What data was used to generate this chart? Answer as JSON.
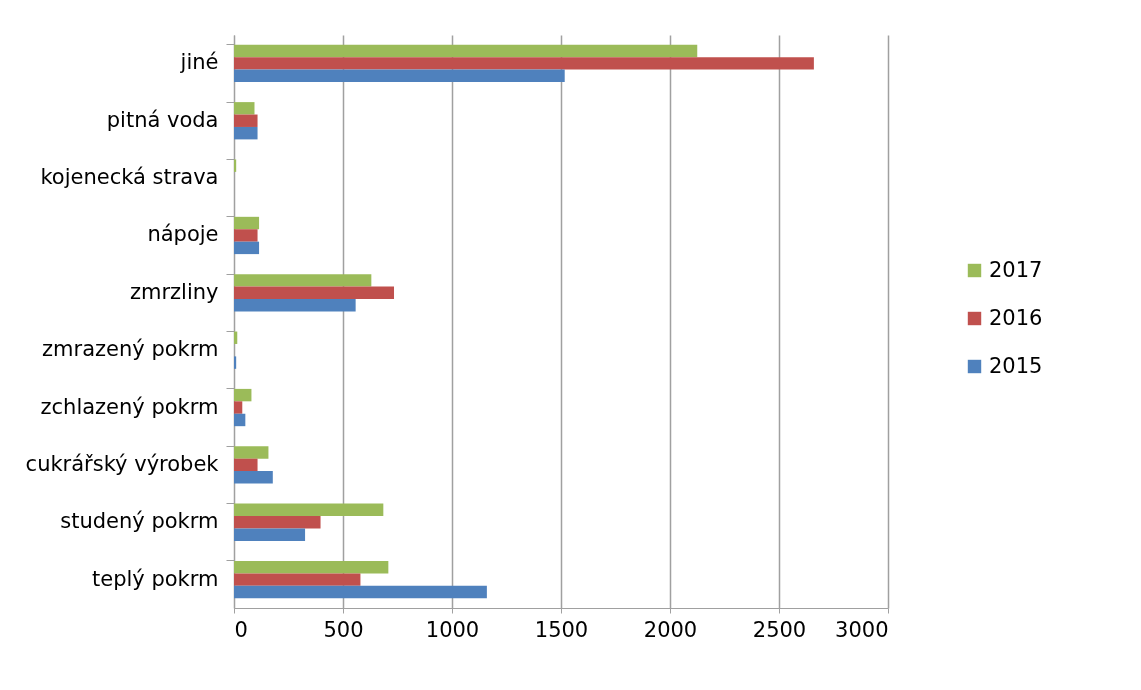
{
  "chart_data": {
    "type": "bar",
    "orientation": "horizontal",
    "categories": [
      "jiné",
      "pitná voda",
      "kojenecká strava",
      "nápoje",
      "zmrzliny",
      "zmrazený pokrm",
      "zchlazený pokrm",
      "cukrářský výrobek",
      "studený pokrm",
      "teplý pokrm"
    ],
    "series": [
      {
        "name": "2017",
        "color": "#9bbb59",
        "values": [
          2125,
          94,
          10,
          115,
          630,
          15,
          80,
          158,
          685,
          708
        ]
      },
      {
        "name": "2016",
        "color": "#c0504d",
        "values": [
          2660,
          108,
          0,
          108,
          734,
          0,
          38,
          108,
          397,
          580
        ]
      },
      {
        "name": "2015",
        "color": "#4f81bd",
        "values": [
          1517,
          108,
          0,
          115,
          558,
          10,
          52,
          178,
          326,
          1160
        ]
      }
    ],
    "xlim": [
      0,
      3000
    ],
    "xticks": [
      0,
      500,
      1000,
      1500,
      2000,
      2500,
      3000
    ],
    "grid": "x",
    "legend": "right"
  }
}
